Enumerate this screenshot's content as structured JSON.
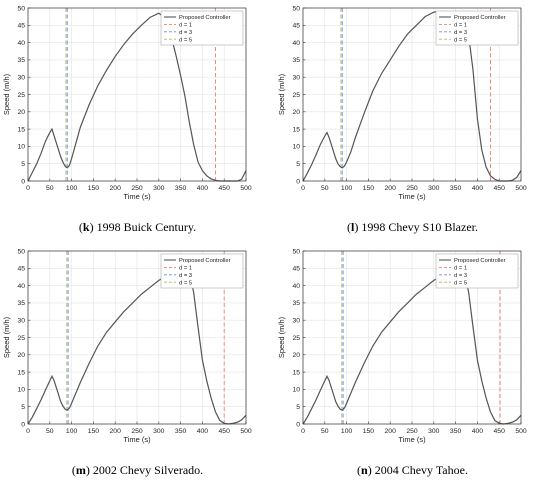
{
  "chart_data": [
    {
      "type": "line",
      "caption_letter": "k",
      "caption_text": "1998 Buick Century.",
      "xlabel": "Time (s)",
      "ylabel": "Speed (m/h)",
      "xlim": [
        0,
        500
      ],
      "ylim": [
        0,
        50
      ],
      "xticks": [
        "0",
        "50",
        "100",
        "150",
        "200",
        "250",
        "300",
        "350",
        "400",
        "450",
        "500"
      ],
      "yticks": [
        "0",
        "5",
        "10",
        "15",
        "20",
        "25",
        "30",
        "35",
        "40",
        "45",
        "50"
      ],
      "grid": true,
      "legend_position": "top-right",
      "series": [
        {
          "name": "Proposed Controller",
          "color": "#555555",
          "style": "solid",
          "x": [
            0,
            10,
            20,
            30,
            40,
            50,
            55,
            60,
            65,
            70,
            75,
            80,
            85,
            90,
            95,
            100,
            110,
            120,
            140,
            160,
            180,
            200,
            220,
            240,
            260,
            280,
            300,
            310,
            320,
            330,
            340,
            350,
            360,
            370,
            380,
            390,
            400,
            410,
            420,
            430,
            440,
            450,
            460,
            470,
            480,
            490,
            500
          ],
          "y": [
            0,
            2.5,
            5,
            8,
            11.5,
            14,
            15,
            13,
            11,
            9,
            7,
            5.5,
            4.3,
            3.8,
            4.5,
            6.5,
            11,
            15.5,
            22,
            27.5,
            32,
            36,
            39.5,
            42.5,
            45,
            47.3,
            48.5,
            47.5,
            44.5,
            41,
            36,
            30.5,
            24.5,
            17,
            10.5,
            5.5,
            3,
            1.5,
            0.6,
            0.2,
            0,
            0,
            0,
            0,
            0,
            0.5,
            3
          ]
        },
        {
          "name": "d = 1",
          "color": "#e8826a",
          "style": "dashed",
          "x": [
            430,
            430
          ],
          "y": [
            0,
            50
          ]
        },
        {
          "name": "d = 3",
          "color": "#6c8ed8",
          "style": "dashed",
          "x": [
            90,
            90
          ],
          "y": [
            0,
            50
          ]
        },
        {
          "name": "d = 5",
          "color": "#b3b864",
          "style": "dashed",
          "x": [
            87,
            87
          ],
          "y": [
            0,
            50
          ]
        }
      ]
    },
    {
      "type": "line",
      "caption_letter": "l",
      "caption_text": "1998 Chevy S10 Blazer.",
      "xlabel": "Time (s)",
      "ylabel": "Speed (m/h)",
      "xlim": [
        0,
        500
      ],
      "ylim": [
        0,
        50
      ],
      "xticks": [
        "0",
        "50",
        "100",
        "150",
        "200",
        "250",
        "300",
        "350",
        "400",
        "450",
        "500"
      ],
      "yticks": [
        "0",
        "5",
        "10",
        "15",
        "20",
        "25",
        "30",
        "35",
        "40",
        "45",
        "50"
      ],
      "grid": true,
      "legend_position": "top-right",
      "series": [
        {
          "name": "Proposed Controller",
          "color": "#555555",
          "style": "solid",
          "x": [
            0,
            10,
            20,
            30,
            40,
            50,
            55,
            60,
            65,
            70,
            75,
            80,
            85,
            90,
            95,
            100,
            110,
            120,
            140,
            160,
            180,
            200,
            220,
            240,
            260,
            280,
            300,
            320,
            340,
            360,
            380,
            390,
            400,
            410,
            420,
            430,
            440,
            450,
            460,
            470,
            480,
            490,
            500
          ],
          "y": [
            0,
            2.3,
            4.8,
            7.6,
            10.6,
            13,
            14,
            12.5,
            10.5,
            8.5,
            6.5,
            5,
            4.2,
            3.8,
            4.3,
            5.5,
            8.5,
            12.5,
            19.5,
            26,
            31,
            35,
            39,
            42.5,
            45,
            47.5,
            48.8,
            49,
            48,
            46,
            42,
            32,
            18,
            9,
            4,
            1.5,
            0.5,
            0,
            0,
            0,
            0.2,
            1,
            3
          ]
        },
        {
          "name": "d = 1",
          "color": "#e8826a",
          "style": "dashed",
          "x": [
            430,
            430
          ],
          "y": [
            0,
            50
          ]
        },
        {
          "name": "d = 3",
          "color": "#6c8ed8",
          "style": "dashed",
          "x": [
            90,
            90
          ],
          "y": [
            0,
            50
          ]
        },
        {
          "name": "d = 5",
          "color": "#b3b864",
          "style": "dashed",
          "x": [
            87,
            87
          ],
          "y": [
            0,
            50
          ]
        }
      ]
    },
    {
      "type": "line",
      "caption_letter": "m",
      "caption_text": "2002 Chevy Silverado.",
      "xlabel": "Time (s)",
      "ylabel": "Speed (m/h)",
      "xlim": [
        0,
        500
      ],
      "ylim": [
        0,
        50
      ],
      "xticks": [
        "0",
        "50",
        "100",
        "150",
        "200",
        "250",
        "300",
        "350",
        "400",
        "450",
        "500"
      ],
      "yticks": [
        "0",
        "5",
        "10",
        "15",
        "20",
        "25",
        "30",
        "35",
        "40",
        "45",
        "50"
      ],
      "grid": true,
      "legend_position": "top-right",
      "series": [
        {
          "name": "Proposed Controller",
          "color": "#555555",
          "style": "solid",
          "x": [
            0,
            10,
            20,
            30,
            40,
            50,
            55,
            60,
            65,
            70,
            75,
            80,
            85,
            90,
            95,
            100,
            110,
            120,
            140,
            160,
            180,
            200,
            220,
            240,
            260,
            280,
            300,
            320,
            340,
            360,
            370,
            380,
            390,
            400,
            410,
            420,
            430,
            440,
            450,
            460,
            470,
            480,
            490,
            500
          ],
          "y": [
            0,
            2,
            4.5,
            7,
            9.8,
            12.5,
            13.8,
            12.5,
            10.5,
            8.5,
            6.5,
            5.2,
            4.3,
            4,
            4.6,
            6,
            9,
            12,
            17.5,
            22.5,
            26.5,
            29.5,
            32.5,
            35,
            37.5,
            39.5,
            41.5,
            43,
            44.5,
            45.5,
            44,
            38,
            28,
            18.5,
            12.5,
            7.5,
            3.5,
            1,
            0.2,
            0,
            0.2,
            0.5,
            1.2,
            2.5
          ]
        },
        {
          "name": "d = 1",
          "color": "#e8826a",
          "style": "dashed",
          "x": [
            450,
            450
          ],
          "y": [
            0,
            50
          ]
        },
        {
          "name": "d = 3",
          "color": "#6c8ed8",
          "style": "dashed",
          "x": [
            92,
            92
          ],
          "y": [
            0,
            50
          ]
        },
        {
          "name": "d = 5",
          "color": "#b3b864",
          "style": "dashed",
          "x": [
            89,
            89
          ],
          "y": [
            0,
            50
          ]
        }
      ]
    },
    {
      "type": "line",
      "caption_letter": "n",
      "caption_text": "2004 Chevy Tahoe.",
      "xlabel": "Time (s)",
      "ylabel": "Speed (m/h)",
      "xlim": [
        0,
        500
      ],
      "ylim": [
        0,
        50
      ],
      "xticks": [
        "0",
        "50",
        "100",
        "150",
        "200",
        "250",
        "300",
        "350",
        "400",
        "450",
        "500"
      ],
      "yticks": [
        "0",
        "5",
        "10",
        "15",
        "20",
        "25",
        "30",
        "35",
        "40",
        "45",
        "50"
      ],
      "grid": true,
      "legend_position": "top-right",
      "series": [
        {
          "name": "Proposed Controller",
          "color": "#555555",
          "style": "solid",
          "x": [
            0,
            10,
            20,
            30,
            40,
            50,
            55,
            60,
            65,
            70,
            75,
            80,
            85,
            90,
            95,
            100,
            110,
            120,
            140,
            160,
            180,
            200,
            220,
            240,
            260,
            280,
            300,
            320,
            340,
            360,
            370,
            380,
            390,
            400,
            410,
            420,
            430,
            440,
            450,
            460,
            470,
            480,
            490,
            500
          ],
          "y": [
            0,
            2,
            4.5,
            7,
            9.8,
            12.5,
            13.8,
            12.5,
            10.5,
            8.5,
            6.5,
            5.2,
            4.3,
            4,
            4.6,
            6,
            9,
            12,
            17.5,
            22.5,
            26.5,
            29.5,
            32.5,
            35,
            37.5,
            39.5,
            41.5,
            43,
            44.5,
            45.5,
            44,
            38,
            28,
            18.5,
            12.5,
            7.5,
            3.5,
            1,
            0.2,
            0,
            0.2,
            0.5,
            1.2,
            2.5
          ]
        },
        {
          "name": "d = 1",
          "color": "#e8826a",
          "style": "dashed",
          "x": [
            452,
            452
          ],
          "y": [
            0,
            50
          ]
        },
        {
          "name": "d = 3",
          "color": "#6c8ed8",
          "style": "dashed",
          "x": [
            92,
            92
          ],
          "y": [
            0,
            50
          ]
        },
        {
          "name": "d = 5",
          "color": "#b3b864",
          "style": "dashed",
          "x": [
            89,
            89
          ],
          "y": [
            0,
            50
          ]
        }
      ]
    }
  ]
}
